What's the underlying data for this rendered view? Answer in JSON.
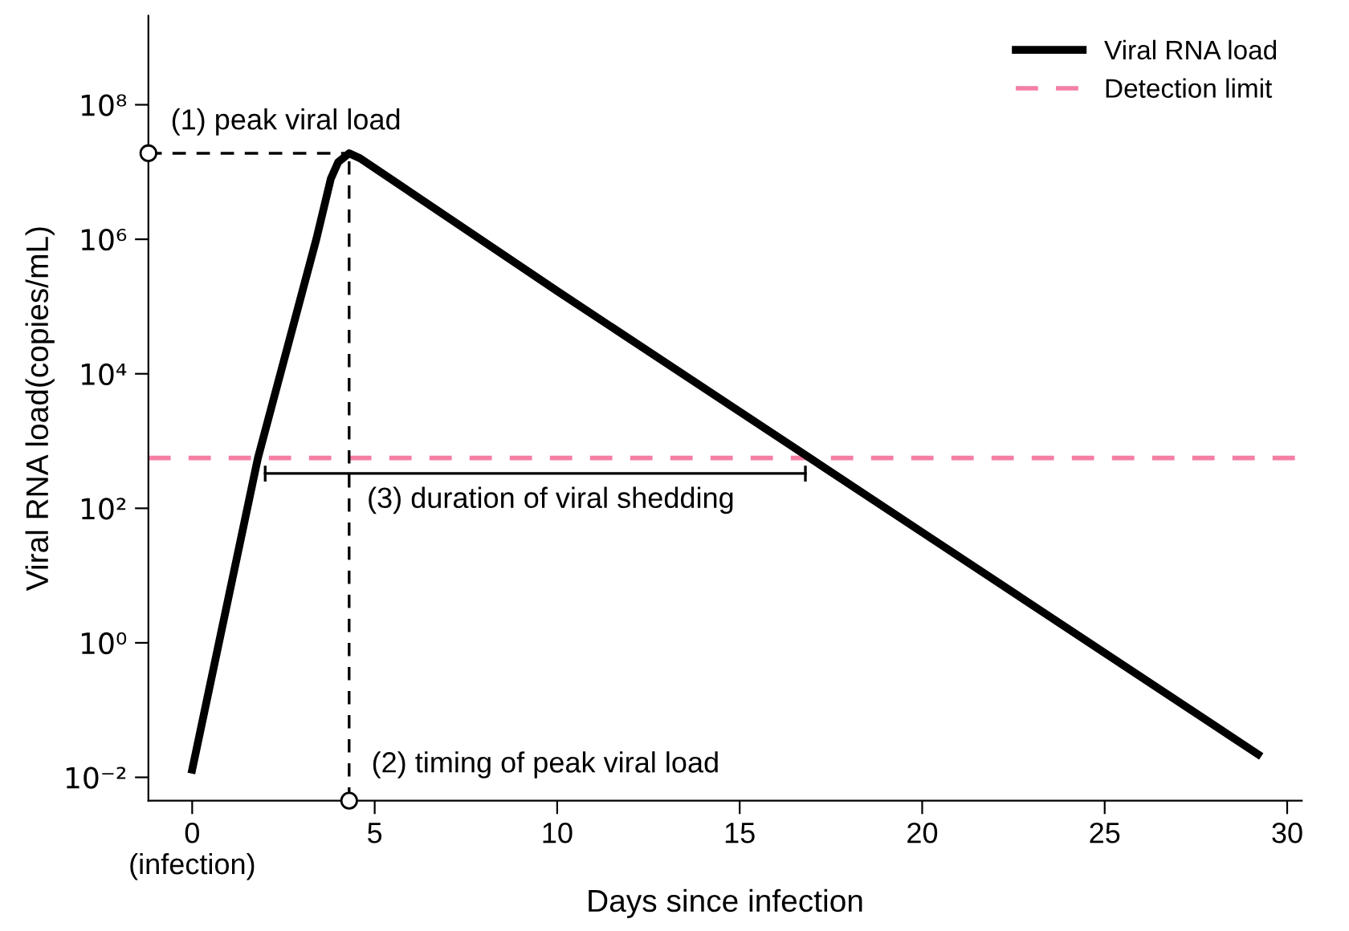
{
  "chart_data": {
    "type": "line",
    "xlabel": "Days since infection",
    "ylabel": "Viral RNA load(copies/mL)",
    "x": [
      0,
      1.8,
      3.4,
      3.8,
      4.0,
      4.3,
      4.6,
      10,
      20,
      29.2
    ],
    "series": [
      {
        "name": "Viral RNA load",
        "color": "#000000",
        "values": [
          0.013,
          560,
          1000000,
          8000000,
          14000000,
          19000000,
          16000000,
          170000,
          44,
          0.022
        ]
      },
      {
        "type": "line",
        "x": [
          2.0,
          16.8
        ],
        "color": "#000000",
        "values": [
          330,
          330
        ],
        "errors": [
          [
            250,
            430
          ],
          [
            250,
            430
          ]
        ]
      }
    ],
    "log": "y",
    "xlim": [
      -1.2,
      30.4
    ],
    "ylim": [
      0.0045,
      2100000000
    ],
    "xticks": [
      {
        "value": 0,
        "label": "0\n(infection)"
      },
      5,
      10,
      15,
      20,
      25,
      30
    ],
    "yticks": [
      {
        "value": 0.01,
        "label": "10⁻²"
      },
      {
        "value": 1,
        "label": "10⁰"
      },
      {
        "value": 100,
        "label": "10²"
      },
      {
        "value": 10000,
        "label": "10⁴"
      },
      {
        "value": 1000000,
        "label": "10⁶"
      },
      {
        "value": 100000000,
        "label": "10⁸"
      }
    ],
    "ref_lines": [
      {
        "axis": "y",
        "value": 560,
        "label": "Detection limit",
        "color": "#f47fa4",
        "line_style": "dashed"
      }
    ],
    "annotations": [
      "(1) peak viral load",
      {
        "text": "(2) timing of peak viral load",
        "x": 4.3,
        "y": 19000000
      },
      {
        "text": "(3) duration of viral shedding",
        "x": 4.3,
        "y": 330
      }
    ],
    "legend": "top right",
    "grid": false
  }
}
